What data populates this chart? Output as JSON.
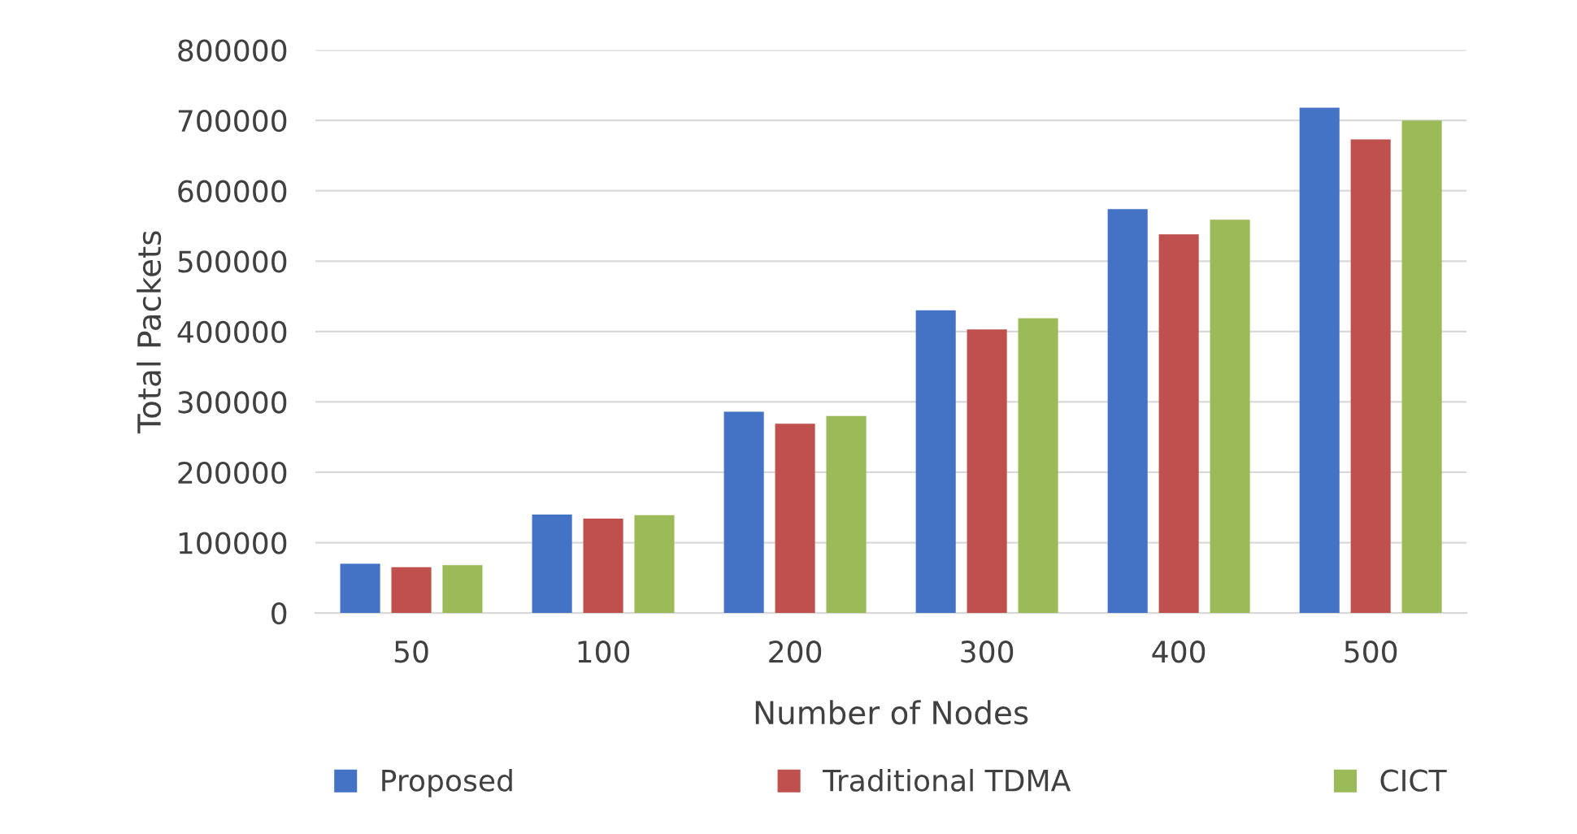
{
  "chart_data": {
    "type": "bar",
    "xlabel": "Number of Nodes",
    "ylabel": "Total Packets",
    "categories": [
      "50",
      "100",
      "200",
      "300",
      "400",
      "500"
    ],
    "series": [
      {
        "name": "Proposed",
        "color": "#4472c4",
        "values": [
          70000,
          140000,
          286000,
          430000,
          574000,
          718000
        ]
      },
      {
        "name": "Traditional TDMA",
        "color": "#c0504d",
        "values": [
          65000,
          134000,
          269000,
          403000,
          538000,
          673000
        ]
      },
      {
        "name": "CICT",
        "color": "#9bbb59",
        "values": [
          68000,
          139000,
          280000,
          419000,
          559000,
          700000
        ]
      }
    ],
    "ylim": [
      0,
      800000
    ],
    "yticks": [
      0,
      100000,
      200000,
      300000,
      400000,
      500000,
      600000,
      700000,
      800000
    ],
    "grid": "y",
    "legend": "bottom"
  }
}
